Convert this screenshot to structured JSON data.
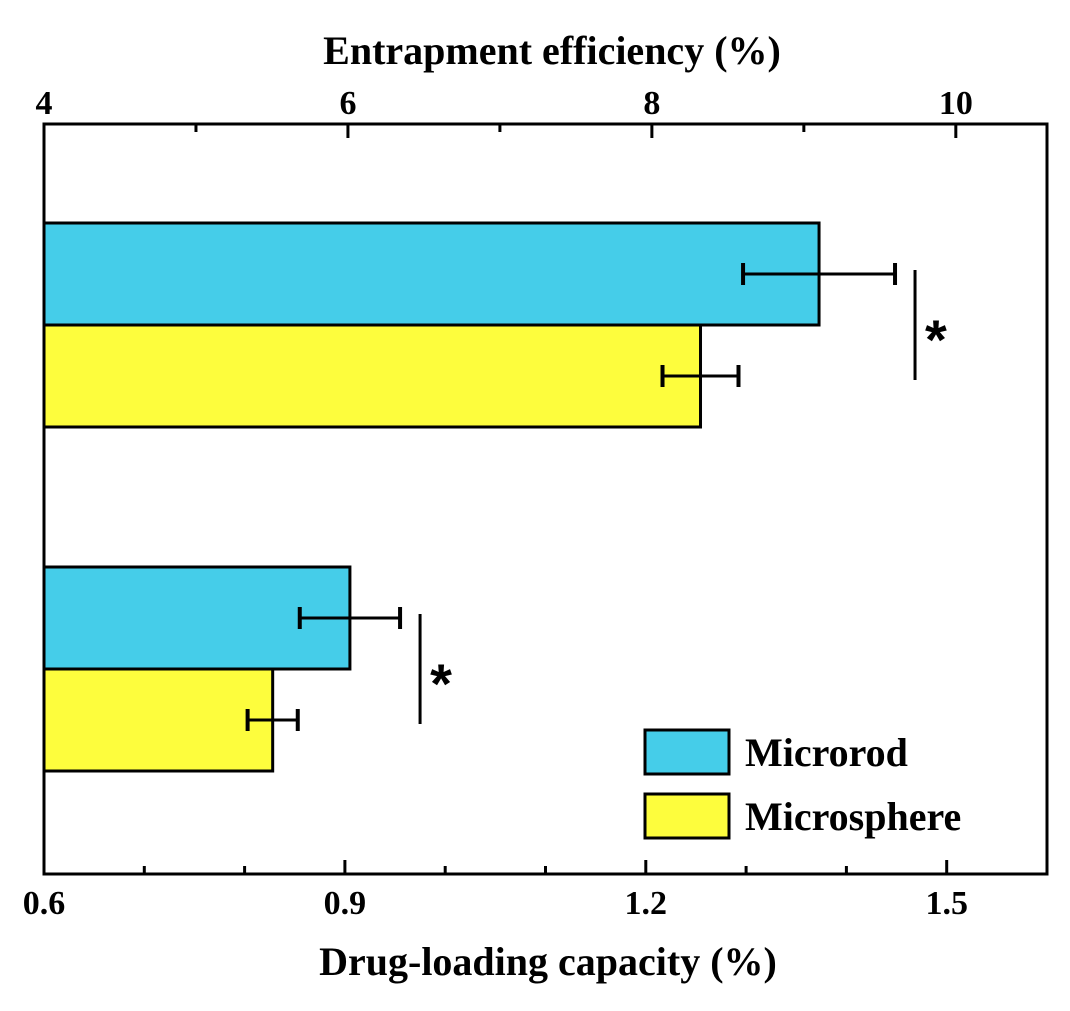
{
  "chart_data": {
    "type": "bar",
    "orientation": "horizontal",
    "top_axis": {
      "title": "Entrapment efficiency (%)",
      "range": [
        4,
        10.6
      ],
      "ticks": [
        4,
        6,
        8,
        10
      ],
      "tick_labels": [
        "4",
        "6",
        "8",
        "10"
      ]
    },
    "bottom_axis": {
      "title": "Drug-loading capacity (%)",
      "range": [
        0.6,
        1.6
      ],
      "ticks": [
        0.6,
        0.9,
        1.2,
        1.5
      ],
      "tick_labels": [
        "0.6",
        "0.9",
        "1.2",
        "1.5"
      ]
    },
    "groups": [
      {
        "metric": "Entrapment efficiency (%)",
        "axis": "top",
        "significance": "*",
        "bars": [
          {
            "series": "Microrod",
            "value": 9.1,
            "error": 0.5
          },
          {
            "series": "Microsphere",
            "value": 8.32,
            "error": 0.25
          }
        ]
      },
      {
        "metric": "Drug-loading capacity (%)",
        "axis": "bottom",
        "significance": "*",
        "bars": [
          {
            "series": "Microrod",
            "value": 0.905,
            "error": 0.05
          },
          {
            "series": "Microsphere",
            "value": 0.828,
            "error": 0.025
          }
        ]
      }
    ],
    "legend": {
      "position": "bottom-right",
      "entries": [
        {
          "label": "Microrod",
          "color": "#45cde9"
        },
        {
          "label": "Microsphere",
          "color": "#fdfd3d"
        }
      ]
    }
  }
}
